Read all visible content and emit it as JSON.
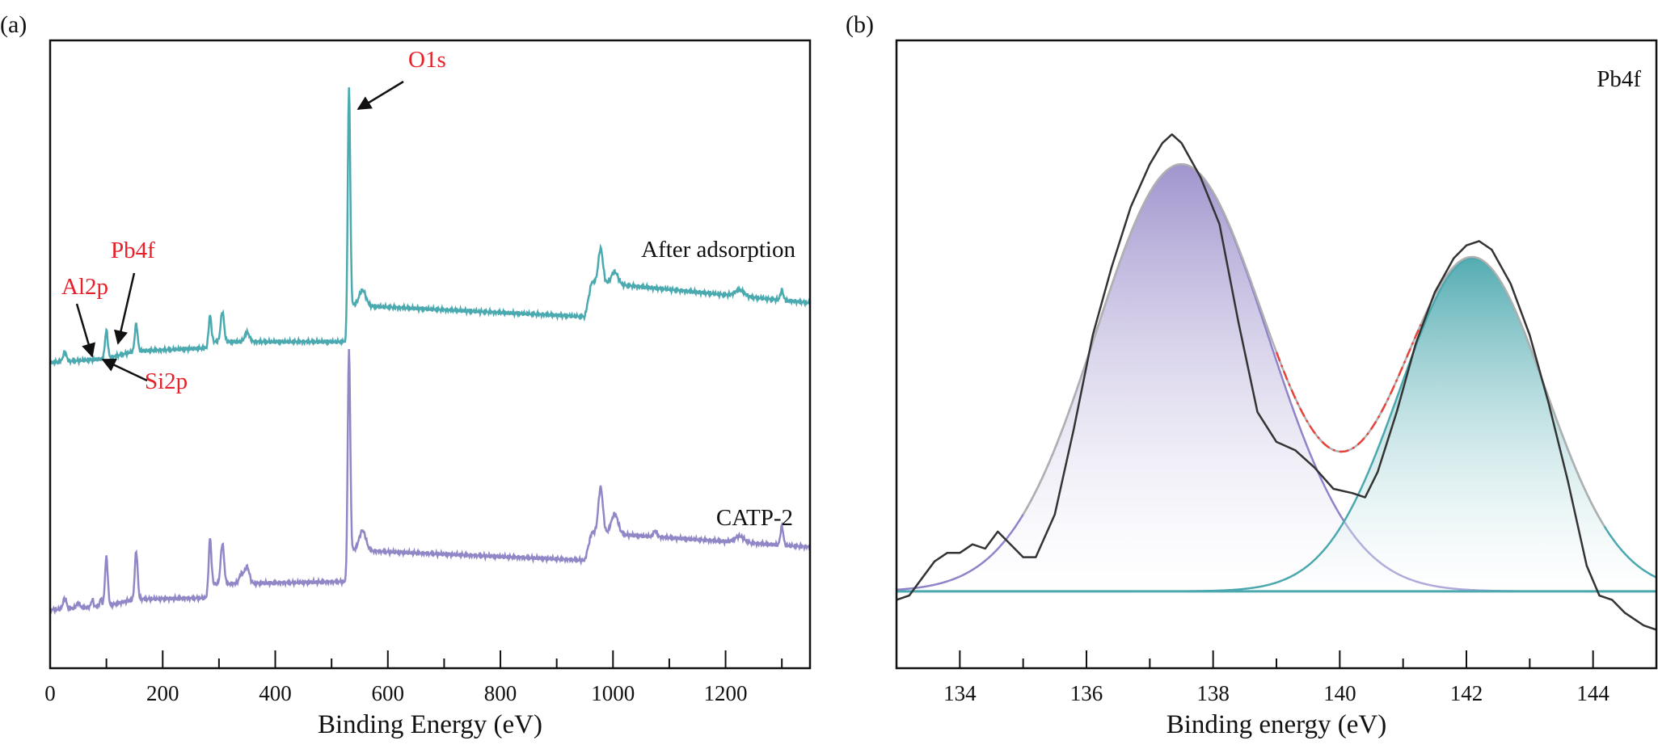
{
  "panels": {
    "a": {
      "label": "(a)"
    },
    "b": {
      "label": "(b)"
    }
  },
  "chart_data": [
    {
      "type": "line",
      "panel": "(a)",
      "xlabel": "Binding Energy (eV)",
      "ylabel": "",
      "xlim": [
        0,
        1350
      ],
      "ylim": [
        0,
        100
      ],
      "xticks": [
        "0",
        "200",
        "400",
        "600",
        "800",
        "1000",
        "1200"
      ],
      "grid": false,
      "series": [
        {
          "name": "After adsorption",
          "color": "#4ba9b0",
          "baseline": [
            [
              0,
              48.7
            ],
            [
              100,
              49.3
            ],
            [
              150,
              50.5
            ],
            [
              280,
              51.0
            ],
            [
              290,
              52.0
            ],
            [
              525,
              52.0
            ],
            [
              535,
              57.8
            ],
            [
              950,
              56.0
            ],
            [
              962,
              61.5
            ],
            [
              1350,
              58.2
            ]
          ],
          "peaks": [
            [
              26,
              1.5,
              3
            ],
            [
              100,
              4.5,
              2.5
            ],
            [
              153,
              4.3,
              2.5
            ],
            [
              284,
              4.8,
              2.5
            ],
            [
              306,
              4.8,
              3
            ],
            [
              350,
              1.5,
              4
            ],
            [
              531,
              37,
              2.2
            ],
            [
              555,
              2.5,
              6
            ],
            [
              978,
              5.5,
              4
            ],
            [
              1003,
              2.0,
              6
            ],
            [
              1225,
              1.0,
              8
            ],
            [
              1300,
              1.6,
              2.5
            ]
          ]
        },
        {
          "name": "CATP-2",
          "color": "#9087c6",
          "baseline": [
            [
              0,
              9.3
            ],
            [
              100,
              9.9
            ],
            [
              150,
              11.0
            ],
            [
              280,
              11.2
            ],
            [
              290,
              13.4
            ],
            [
              525,
              13.8
            ],
            [
              535,
              18.8
            ],
            [
              950,
              17.2
            ],
            [
              962,
              21.6
            ],
            [
              1350,
              19.3
            ]
          ],
          "peaks": [
            [
              26,
              1.7,
              3
            ],
            [
              50,
              0.8,
              3
            ],
            [
              75,
              1.2,
              2
            ],
            [
              90,
              1.2,
              2
            ],
            [
              100,
              7.8,
              2.5
            ],
            [
              153,
              7.6,
              2.5
            ],
            [
              284,
              8.6,
              2.5
            ],
            [
              306,
              6.4,
              3
            ],
            [
              340,
              1.5,
              4
            ],
            [
              350,
              2.6,
              4
            ],
            [
              531,
              34,
              2.2
            ],
            [
              555,
              3.2,
              6
            ],
            [
              978,
              7.3,
              4
            ],
            [
              1003,
              3.2,
              6
            ],
            [
              1075,
              1.0,
              3
            ],
            [
              1225,
              1.0,
              8
            ],
            [
              1300,
              3.0,
              2.5
            ]
          ]
        }
      ],
      "annotations": [
        {
          "text": "O1s",
          "target_eV": 531
        },
        {
          "text": "Pb4f",
          "target_eV": 138
        },
        {
          "text": "Al2p",
          "target_eV": 74
        },
        {
          "text": "Si2p",
          "target_eV": 102
        }
      ]
    },
    {
      "type": "line",
      "panel": "(b)",
      "title": "Pb4f",
      "xlabel": "Binding energy (eV)",
      "ylabel": "",
      "xlim": [
        133,
        145
      ],
      "ylim": [
        -0.18,
        1.29
      ],
      "xticks": [
        "134",
        "136",
        "138",
        "140",
        "142",
        "144"
      ],
      "grid": false,
      "raw": {
        "color": "#333333",
        "x": [
          133.0,
          133.2,
          133.4,
          133.6,
          133.8,
          134.0,
          134.2,
          134.4,
          134.6,
          134.8,
          135.0,
          135.2,
          135.5,
          135.8,
          136.1,
          136.4,
          136.7,
          137.0,
          137.2,
          137.35,
          137.5,
          137.8,
          138.1,
          138.4,
          138.7,
          139.0,
          139.3,
          139.6,
          139.9,
          140.2,
          140.4,
          140.6,
          140.9,
          141.2,
          141.5,
          141.8,
          142.0,
          142.2,
          142.4,
          142.7,
          143.0,
          143.3,
          143.6,
          143.9,
          144.1,
          144.3,
          144.5,
          144.8,
          145.0
        ],
        "y": [
          -0.02,
          -0.01,
          0.03,
          0.07,
          0.09,
          0.09,
          0.11,
          0.1,
          0.14,
          0.11,
          0.08,
          0.08,
          0.18,
          0.38,
          0.6,
          0.76,
          0.9,
          1.0,
          1.05,
          1.07,
          1.05,
          0.97,
          0.86,
          0.63,
          0.42,
          0.35,
          0.33,
          0.29,
          0.24,
          0.23,
          0.22,
          0.28,
          0.42,
          0.58,
          0.7,
          0.78,
          0.81,
          0.82,
          0.8,
          0.72,
          0.6,
          0.44,
          0.26,
          0.06,
          -0.01,
          -0.02,
          -0.05,
          -0.08,
          -0.09
        ]
      },
      "components": [
        {
          "center": 137.5,
          "height": 1.0,
          "sigma": 1.35,
          "color": "#8f84c9"
        },
        {
          "center": 142.1,
          "height": 0.78,
          "sigma": 1.15,
          "color": "#4aa8ae"
        }
      ],
      "envelope_color": "#b0b0b0",
      "envelope_dash_color": "#e8433a"
    }
  ]
}
